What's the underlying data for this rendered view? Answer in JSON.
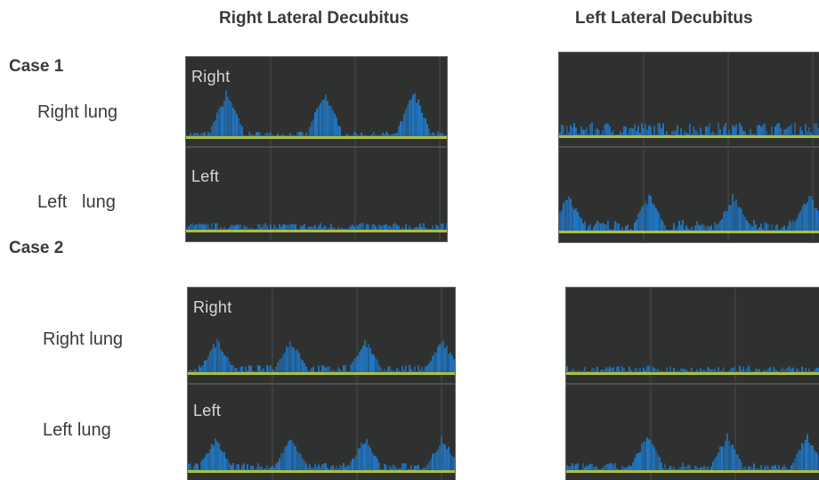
{
  "columns": {
    "right": "Right Lateral Decubitus",
    "left": "Left Lateral Decubitus"
  },
  "cases": [
    {
      "label": "Case 1",
      "rows": [
        {
          "label": "Right lung",
          "trace_tag": "Right"
        },
        {
          "label": "Left   lung",
          "trace_tag": "Left"
        }
      ]
    },
    {
      "label": "Case 2",
      "rows": [
        {
          "label": "Right lung",
          "trace_tag": "Right"
        },
        {
          "label": "Left lung",
          "trace_tag": "Left"
        }
      ]
    }
  ],
  "colors": {
    "panel_bg": "#2f3130",
    "signal": "#1f78c8",
    "baseline": "#c8d43a",
    "text": "#3a3a3a"
  }
}
